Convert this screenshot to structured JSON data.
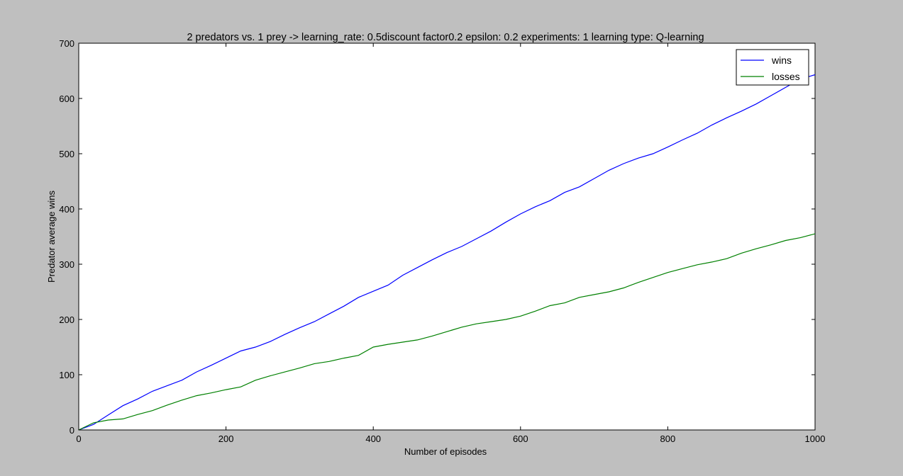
{
  "chart_data": {
    "type": "line",
    "title": "2 predators vs. 1 prey -> learning_rate: 0.5discount factor0.2 epsilon: 0.2 experiments: 1 learning type: Q-learning",
    "xlabel": "Number of episodes",
    "ylabel": "Predator average wins",
    "xlim": [
      0,
      1000
    ],
    "ylim": [
      0,
      700
    ],
    "xticks": [
      0,
      200,
      400,
      600,
      800,
      1000
    ],
    "yticks": [
      0,
      100,
      200,
      300,
      400,
      500,
      600,
      700
    ],
    "grid": false,
    "legend_position": "top-right",
    "series": [
      {
        "name": "wins",
        "color": "#0000ff",
        "x": [
          0,
          20,
          40,
          60,
          80,
          100,
          120,
          140,
          160,
          180,
          200,
          220,
          240,
          260,
          280,
          300,
          320,
          340,
          360,
          380,
          400,
          420,
          440,
          460,
          480,
          500,
          520,
          540,
          560,
          580,
          600,
          620,
          640,
          660,
          680,
          700,
          720,
          740,
          760,
          780,
          800,
          820,
          840,
          860,
          880,
          900,
          920,
          940,
          960,
          980,
          1000
        ],
        "values": [
          0,
          10,
          27,
          44,
          56,
          70,
          80,
          90,
          105,
          117,
          130,
          143,
          150,
          160,
          173,
          185,
          196,
          210,
          224,
          240,
          251,
          262,
          280,
          294,
          308,
          321,
          332,
          346,
          360,
          376,
          391,
          404,
          415,
          430,
          440,
          455,
          470,
          482,
          492,
          500,
          512,
          525,
          537,
          552,
          565,
          577,
          590,
          605,
          620,
          635,
          643
        ]
      },
      {
        "name": "losses",
        "color": "#008000",
        "x": [
          0,
          20,
          40,
          60,
          80,
          100,
          120,
          140,
          160,
          180,
          200,
          220,
          240,
          260,
          280,
          300,
          320,
          340,
          360,
          380,
          400,
          420,
          440,
          460,
          480,
          500,
          520,
          540,
          560,
          580,
          600,
          620,
          640,
          660,
          680,
          700,
          720,
          740,
          760,
          780,
          800,
          820,
          840,
          860,
          880,
          900,
          920,
          940,
          960,
          980,
          1000
        ],
        "values": [
          0,
          13,
          18,
          20,
          28,
          35,
          45,
          54,
          62,
          67,
          73,
          78,
          90,
          98,
          105,
          112,
          120,
          124,
          130,
          135,
          150,
          155,
          159,
          163,
          170,
          178,
          186,
          192,
          196,
          200,
          206,
          215,
          225,
          230,
          240,
          245,
          250,
          257,
          267,
          276,
          285,
          292,
          299,
          304,
          310,
          320,
          328,
          335,
          343,
          348,
          355
        ]
      }
    ]
  }
}
